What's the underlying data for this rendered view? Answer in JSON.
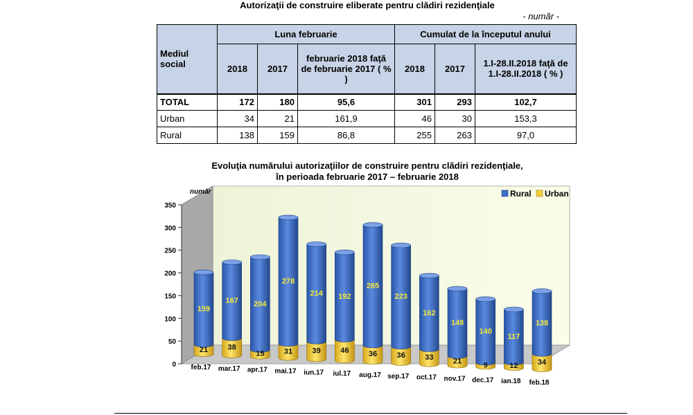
{
  "table": {
    "title": "Autorizaţii de construire eliberate pentru clădiri rezidenţiale",
    "unit": "- număr -",
    "header": {
      "row_label": "Mediul social",
      "group1": "Luna februarie",
      "group2": "Cumulat de la începutul anului",
      "y2018": "2018",
      "y2017": "2017",
      "pct1": "februarie 2018 faţă de februarie 2017 ( % )",
      "y2018b": "2018",
      "y2017b": "2017",
      "pct2": "1.I-28.II.2018 faţă de 1.I-28.II.2018 ( % )"
    },
    "rows": [
      {
        "label": "TOTAL",
        "c1": "172",
        "c2": "180",
        "c3": "95,6",
        "c4": "301",
        "c5": "293",
        "c6": "102,7"
      },
      {
        "label": "Urban",
        "c1": "34",
        "c2": "21",
        "c3": "161,9",
        "c4": "46",
        "c5": "30",
        "c6": "153,3"
      },
      {
        "label": "Rural",
        "c1": "138",
        "c2": "159",
        "c3": "86,8",
        "c4": "255",
        "c5": "263",
        "c6": "97,0"
      }
    ]
  },
  "chart_data": {
    "type": "bar",
    "title": "Evoluţia numărului autorizaţiilor de construire pentru clădiri rezidenţiale,",
    "subtitle": "în perioada februarie 2017 – februarie 2018",
    "ylabel": "număr",
    "ylim": [
      0,
      350
    ],
    "yticks": [
      "0",
      "50",
      "100",
      "150",
      "200",
      "250",
      "300",
      "350"
    ],
    "stacked": true,
    "legend_position": "top-right",
    "categories": [
      "feb.17",
      "mar.17",
      "apr.17",
      "mai.17",
      "iun.17",
      "iul.17",
      "aug.17",
      "sep.17",
      "oct.17",
      "nov.17",
      "dec.17",
      "ian.18",
      "feb.18"
    ],
    "series": [
      {
        "name": "Rural",
        "color": "#3d6fc6",
        "values": [
          159,
          167,
          204,
          278,
          214,
          192,
          265,
          223,
          162,
          148,
          140,
          117,
          138
        ]
      },
      {
        "name": "Urban",
        "color": "#f2cf3a",
        "values": [
          21,
          38,
          15,
          31,
          39,
          46,
          36,
          36,
          33,
          21,
          9,
          12,
          34
        ]
      }
    ]
  }
}
